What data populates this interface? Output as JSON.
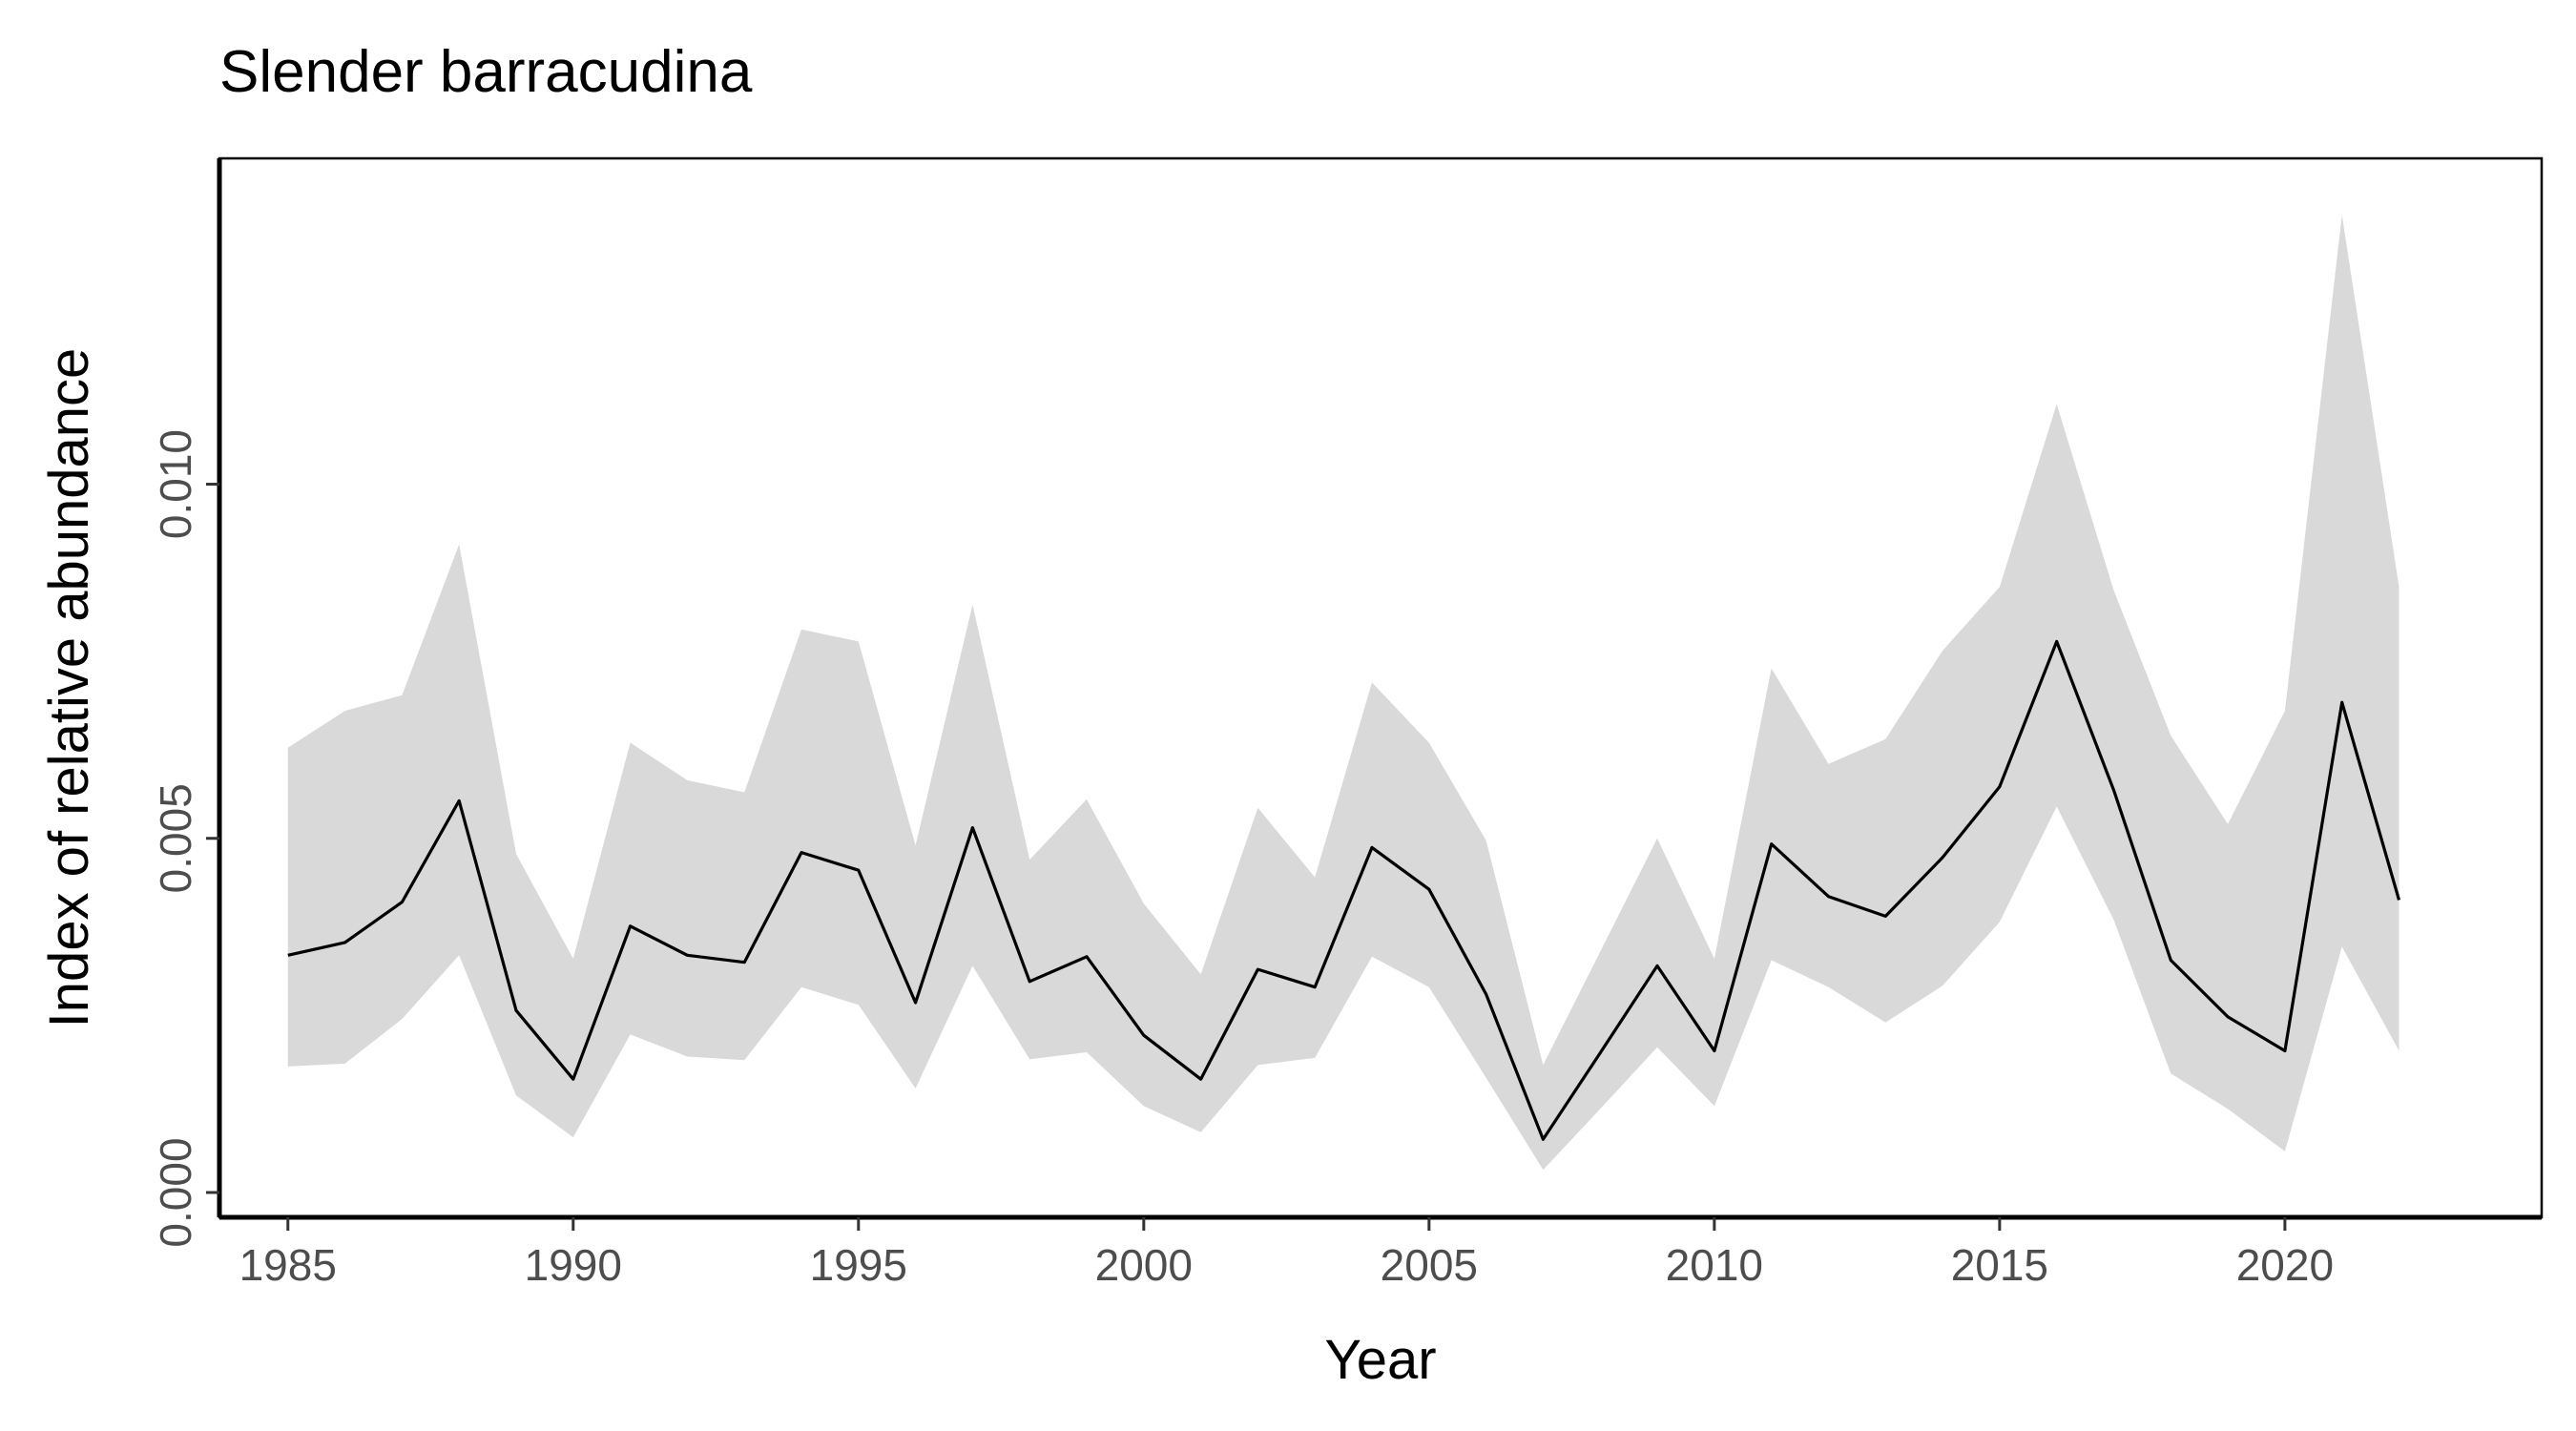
{
  "chart_data": {
    "type": "line",
    "title": "Slender barracudina",
    "xlabel": "Year",
    "ylabel": "Index of relative abundance",
    "xlim": [
      1983.8,
      2024.5
    ],
    "ylim": [
      -0.00035,
      0.0146
    ],
    "x_ticks": [
      1985,
      1990,
      1995,
      2000,
      2005,
      2010,
      2015,
      2020
    ],
    "y_ticks": [
      0.0,
      0.005,
      0.01
    ],
    "y_tick_labels": [
      "0.000",
      "0.005",
      "0.010"
    ],
    "grid": false,
    "legend": "none",
    "series": [
      {
        "x": [
          1985,
          1986,
          1987,
          1988,
          1989,
          1990,
          1991,
          1992,
          1993,
          1994,
          1995,
          1996,
          1997,
          1998,
          1999,
          2000,
          2001,
          2002,
          2003,
          2004,
          2005,
          2006,
          2007,
          2008,
          2009,
          2010,
          2011,
          2012,
          2013,
          2014,
          2015,
          2016,
          2017,
          2018,
          2019,
          2020,
          2021,
          2022
        ],
        "values": [
          0.00335,
          0.00353,
          0.0041,
          0.00553,
          0.00257,
          0.0016,
          0.00376,
          0.00335,
          0.00325,
          0.0048,
          0.00455,
          0.00268,
          0.00515,
          0.00298,
          0.00333,
          0.00222,
          0.0016,
          0.00315,
          0.0029,
          0.00487,
          0.00428,
          0.0028,
          0.00075,
          0.00197,
          0.0032,
          0.002,
          0.00492,
          0.00418,
          0.0039,
          0.00473,
          0.00573,
          0.00778,
          0.00568,
          0.00328,
          0.00248,
          0.002,
          0.00692,
          0.00413
        ],
        "lower": [
          0.00178,
          0.00182,
          0.00245,
          0.00335,
          0.00137,
          0.00078,
          0.00223,
          0.00192,
          0.00187,
          0.0029,
          0.00265,
          0.00147,
          0.0032,
          0.00188,
          0.00198,
          0.00122,
          0.00085,
          0.0018,
          0.0019,
          0.00333,
          0.0029,
          0.00162,
          0.00032,
          0.00118,
          0.00205,
          0.00122,
          0.00328,
          0.0029,
          0.0024,
          0.00292,
          0.00382,
          0.00545,
          0.00385,
          0.00168,
          0.00118,
          0.00058,
          0.00347,
          0.002
        ],
        "upper": [
          0.00628,
          0.0068,
          0.00702,
          0.00915,
          0.00478,
          0.0033,
          0.00635,
          0.00582,
          0.00565,
          0.00795,
          0.00778,
          0.0049,
          0.0083,
          0.0047,
          0.00555,
          0.00408,
          0.00308,
          0.00543,
          0.00445,
          0.0072,
          0.00635,
          0.00497,
          0.0018,
          0.0034,
          0.005,
          0.0033,
          0.0074,
          0.00605,
          0.0064,
          0.00765,
          0.00855,
          0.01113,
          0.0085,
          0.00645,
          0.0052,
          0.0068,
          0.0138,
          0.00855
        ]
      }
    ],
    "colors": {
      "line": "#000000",
      "ribbon": "#d9d9d9",
      "axis": "#000000",
      "tick_label": "#4d4d4d"
    }
  }
}
